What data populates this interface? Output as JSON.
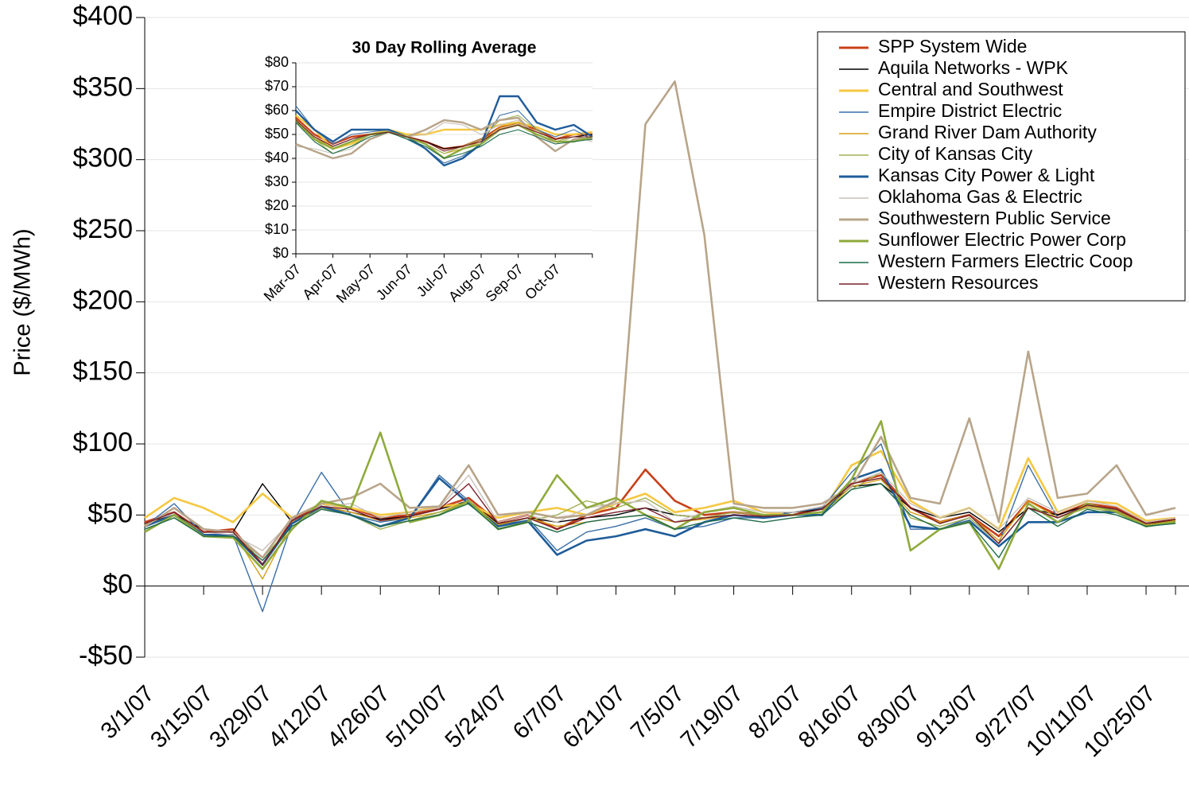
{
  "chart_data": [
    {
      "type": "line",
      "y_label": "Price ($/MWh)",
      "grid": true,
      "legend": "upper right",
      "categories": [
        "3/1/07",
        null,
        "3/15/07",
        null,
        "3/29/07",
        null,
        "4/12/07",
        null,
        "4/26/07",
        null,
        "5/10/07",
        null,
        "5/24/07",
        null,
        "6/7/07",
        null,
        "6/21/07",
        null,
        "7/5/07",
        null,
        "7/19/07",
        null,
        "8/2/07",
        null,
        "8/16/07",
        null,
        "8/30/07",
        null,
        "9/13/07",
        null,
        "9/27/07",
        null,
        "10/11/07",
        null,
        "10/25/07",
        null
      ],
      "ylim": [
        -50,
        400
      ],
      "yticks": [
        {
          "value": -50,
          "label": "-$50"
        },
        {
          "value": 0,
          "label": "$0"
        },
        {
          "value": 50,
          "label": "$50"
        },
        {
          "value": 100,
          "label": "$100"
        },
        {
          "value": 150,
          "label": "$150"
        },
        {
          "value": 200,
          "label": "$200"
        },
        {
          "value": 250,
          "label": "$250"
        },
        {
          "value": 300,
          "label": "$300"
        },
        {
          "value": 350,
          "label": "$350"
        },
        {
          "value": 400,
          "label": "$400"
        }
      ],
      "series": [
        {
          "name": "SPP System Wide",
          "color": "#c8401a",
          "values": [
            45,
            52,
            38,
            40,
            15,
            46,
            58,
            55,
            48,
            50,
            55,
            62,
            45,
            50,
            40,
            50,
            55,
            82,
            60,
            50,
            52,
            50,
            50,
            55,
            72,
            78,
            55,
            45,
            50,
            35,
            60,
            50,
            58,
            55,
            45,
            47
          ]
        },
        {
          "name": "Aquila Networks - WPK",
          "color": "#000000",
          "values": [
            44,
            50,
            40,
            38,
            72,
            45,
            56,
            52,
            47,
            49,
            54,
            60,
            44,
            48,
            45,
            48,
            50,
            55,
            50,
            48,
            50,
            49,
            52,
            54,
            70,
            72,
            55,
            48,
            52,
            38,
            55,
            50,
            57,
            54,
            44,
            46
          ]
        },
        {
          "name": "Central and Southwest",
          "color": "#f5c842",
          "values": [
            48,
            62,
            55,
            45,
            65,
            48,
            58,
            55,
            50,
            52,
            56,
            58,
            48,
            52,
            55,
            50,
            58,
            65,
            52,
            55,
            60,
            52,
            50,
            52,
            85,
            95,
            60,
            48,
            55,
            40,
            90,
            52,
            60,
            58,
            46,
            48
          ]
        },
        {
          "name": "Empire District Electric",
          "color": "#3a6ea5",
          "values": [
            42,
            58,
            36,
            36,
            -18,
            44,
            80,
            50,
            45,
            48,
            78,
            60,
            42,
            48,
            25,
            38,
            42,
            48,
            40,
            42,
            48,
            48,
            52,
            55,
            80,
            100,
            40,
            40,
            48,
            30,
            85,
            48,
            56,
            54,
            42,
            46
          ]
        },
        {
          "name": "Grand River Dam Authority",
          "color": "#d4a017",
          "values": [
            43,
            50,
            38,
            38,
            5,
            45,
            56,
            52,
            46,
            48,
            52,
            60,
            43,
            48,
            42,
            45,
            48,
            50,
            45,
            47,
            50,
            48,
            50,
            52,
            70,
            75,
            52,
            45,
            50,
            32,
            60,
            48,
            56,
            53,
            43,
            46
          ]
        },
        {
          "name": "City of Kansas City",
          "color": "#a0b050",
          "values": [
            40,
            48,
            36,
            35,
            20,
            42,
            55,
            50,
            40,
            46,
            52,
            58,
            42,
            46,
            50,
            60,
            55,
            62,
            50,
            48,
            52,
            50,
            50,
            52,
            68,
            80,
            48,
            42,
            48,
            30,
            55,
            48,
            55,
            52,
            42,
            45
          ]
        },
        {
          "name": "Kansas City Power & Light",
          "color": "#1f5c99",
          "values": [
            42,
            50,
            36,
            36,
            15,
            44,
            56,
            50,
            42,
            48,
            76,
            58,
            42,
            46,
            22,
            32,
            35,
            40,
            35,
            45,
            50,
            48,
            50,
            50,
            75,
            82,
            42,
            40,
            46,
            28,
            45,
            45,
            52,
            52,
            42,
            45
          ]
        },
        {
          "name": "Oklahoma Gas & Electric",
          "color": "#c8c0b8",
          "values": [
            44,
            52,
            38,
            36,
            25,
            46,
            56,
            58,
            48,
            52,
            55,
            78,
            45,
            50,
            45,
            55,
            58,
            60,
            45,
            52,
            56,
            52,
            52,
            56,
            72,
            80,
            58,
            48,
            55,
            40,
            62,
            52,
            60,
            56,
            45,
            48
          ]
        },
        {
          "name": "Southwestern Public Service",
          "color": "#b8a58a",
          "values": [
            42,
            55,
            40,
            38,
            20,
            48,
            58,
            62,
            72,
            55,
            56,
            85,
            50,
            52,
            48,
            50,
            60,
            325,
            355,
            247,
            58,
            55,
            55,
            58,
            70,
            105,
            62,
            58,
            118,
            45,
            165,
            62,
            65,
            85,
            50,
            55
          ]
        },
        {
          "name": "Sunflower Electric Power Corp",
          "color": "#8faa3c",
          "values": [
            38,
            50,
            35,
            34,
            12,
            40,
            60,
            55,
            108,
            45,
            50,
            60,
            40,
            45,
            78,
            55,
            62,
            50,
            40,
            52,
            55,
            50,
            50,
            52,
            75,
            116,
            25,
            40,
            45,
            12,
            58,
            45,
            58,
            52,
            42,
            45
          ]
        },
        {
          "name": "Western Farmers Electric Coop",
          "color": "#1e6b4a",
          "values": [
            40,
            48,
            35,
            35,
            18,
            42,
            54,
            50,
            42,
            46,
            50,
            58,
            40,
            45,
            38,
            45,
            48,
            50,
            40,
            45,
            48,
            45,
            48,
            50,
            68,
            72,
            50,
            40,
            45,
            20,
            55,
            42,
            54,
            50,
            42,
            44
          ]
        },
        {
          "name": "Western Resources",
          "color": "#7a1e2a",
          "values": [
            44,
            52,
            38,
            38,
            15,
            46,
            56,
            54,
            46,
            49,
            54,
            72,
            44,
            48,
            40,
            48,
            52,
            55,
            45,
            48,
            50,
            49,
            50,
            54,
            72,
            76,
            55,
            44,
            50,
            30,
            55,
            48,
            57,
            54,
            44,
            47
          ]
        }
      ]
    },
    {
      "type": "line",
      "title": "30 Day Rolling Average",
      "grid": true,
      "categories": [
        "Mar-07",
        null,
        "Apr-07",
        null,
        "May-07",
        null,
        "Jun-07",
        null,
        "Jul-07",
        null,
        "Aug-07",
        null,
        "Sep-07",
        null,
        "Oct-07",
        null,
        null
      ],
      "ylim": [
        0,
        80
      ],
      "yticks": [
        {
          "value": 0,
          "label": "$0"
        },
        {
          "value": 10,
          "label": "$10"
        },
        {
          "value": 20,
          "label": "$20"
        },
        {
          "value": 30,
          "label": "$30"
        },
        {
          "value": 40,
          "label": "$40"
        },
        {
          "value": 50,
          "label": "$50"
        },
        {
          "value": 60,
          "label": "$60"
        },
        {
          "value": 70,
          "label": "$70"
        },
        {
          "value": 80,
          "label": "$80"
        }
      ],
      "series": [
        {
          "color": "#c8401a",
          "values": [
            57,
            50,
            46,
            49,
            50,
            51,
            49,
            47,
            44,
            45,
            48,
            53,
            55,
            52,
            48,
            50,
            50
          ]
        },
        {
          "color": "#000000",
          "values": [
            55,
            49,
            45,
            48,
            50,
            51,
            49,
            47,
            44,
            45,
            47,
            52,
            54,
            51,
            48,
            49,
            50
          ]
        },
        {
          "color": "#f5c842",
          "values": [
            58,
            52,
            44,
            46,
            50,
            52,
            50,
            50,
            52,
            52,
            52,
            54,
            55,
            53,
            50,
            50,
            51
          ]
        },
        {
          "color": "#3a6ea5",
          "values": [
            62,
            52,
            46,
            50,
            51,
            52,
            48,
            44,
            38,
            41,
            46,
            58,
            60,
            52,
            49,
            52,
            48
          ]
        },
        {
          "color": "#d4a017",
          "values": [
            56,
            49,
            44,
            47,
            50,
            51,
            49,
            46,
            42,
            44,
            47,
            53,
            55,
            51,
            48,
            49,
            49
          ]
        },
        {
          "color": "#a0b050",
          "values": [
            55,
            48,
            42,
            45,
            50,
            51,
            49,
            46,
            42,
            45,
            48,
            56,
            58,
            52,
            47,
            49,
            48
          ]
        },
        {
          "color": "#1f5c99",
          "values": [
            60,
            52,
            47,
            52,
            52,
            52,
            49,
            44,
            37,
            40,
            46,
            66,
            66,
            55,
            52,
            54,
            49
          ]
        },
        {
          "color": "#c8c0b8",
          "values": [
            45,
            44,
            42,
            44,
            50,
            51,
            49,
            50,
            55,
            54,
            50,
            54,
            56,
            50,
            46,
            49,
            47
          ]
        },
        {
          "color": "#b8a58a",
          "values": [
            46,
            43,
            40,
            42,
            48,
            51,
            49,
            52,
            56,
            55,
            52,
            56,
            57,
            49,
            43,
            48,
            48
          ]
        },
        {
          "color": "#8faa3c",
          "values": [
            56,
            48,
            44,
            47,
            50,
            51,
            49,
            46,
            40,
            44,
            46,
            52,
            54,
            50,
            47,
            47,
            49
          ]
        },
        {
          "color": "#1e6b4a",
          "values": [
            55,
            47,
            42,
            45,
            49,
            51,
            48,
            45,
            40,
            42,
            45,
            50,
            52,
            49,
            46,
            47,
            48
          ]
        },
        {
          "color": "#7a1e2a",
          "values": [
            56,
            49,
            45,
            48,
            50,
            51,
            49,
            47,
            43,
            45,
            47,
            52,
            54,
            51,
            48,
            49,
            49
          ]
        }
      ]
    }
  ]
}
